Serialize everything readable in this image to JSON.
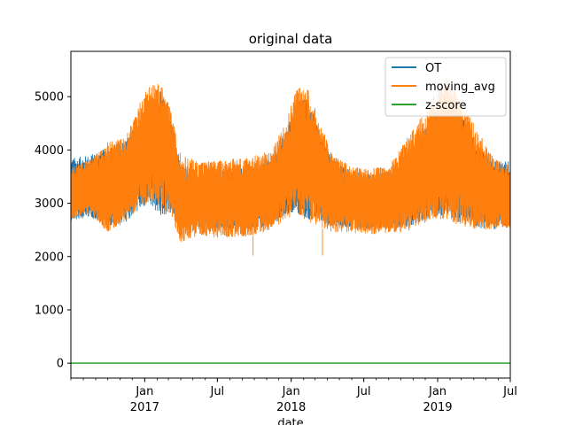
{
  "chart_data": {
    "type": "line",
    "title": "original data",
    "xlabel": "date",
    "ylabel": "",
    "x_range": [
      "2016-07-01",
      "2019-07-01"
    ],
    "ylim": [
      -280,
      5850
    ],
    "y_ticks": [
      0,
      1000,
      2000,
      3000,
      4000,
      5000
    ],
    "x_ticks": [
      {
        "date": "2017-01-01",
        "label": "Jan",
        "sub": "2017"
      },
      {
        "date": "2017-07-01",
        "label": "Jul",
        "sub": ""
      },
      {
        "date": "2018-01-01",
        "label": "Jan",
        "sub": "2018"
      },
      {
        "date": "2018-07-01",
        "label": "Jul",
        "sub": ""
      },
      {
        "date": "2019-01-01",
        "label": "Jan",
        "sub": "2019"
      },
      {
        "date": "2019-07-01",
        "label": "Jul",
        "sub": ""
      }
    ],
    "legend_position": "top-right",
    "grid": false,
    "series": [
      {
        "name": "OT",
        "color": "#1f77b4",
        "envelope": [
          {
            "x": "2016-07-01",
            "low": 2650,
            "high": 3850
          },
          {
            "x": "2016-08-15",
            "low": 2750,
            "high": 3900
          },
          {
            "x": "2016-10-01",
            "low": 2550,
            "high": 4050
          },
          {
            "x": "2016-11-15",
            "low": 2650,
            "high": 4200
          },
          {
            "x": "2016-12-15",
            "low": 2850,
            "high": 4500
          },
          {
            "x": "2017-01-10",
            "low": 2950,
            "high": 4900
          },
          {
            "x": "2017-02-10",
            "low": 2750,
            "high": 5100
          },
          {
            "x": "2017-03-05",
            "low": 2800,
            "high": 4700
          },
          {
            "x": "2017-04-01",
            "low": 2600,
            "high": 3700
          },
          {
            "x": "2017-05-15",
            "low": 2550,
            "high": 3600
          },
          {
            "x": "2017-07-01",
            "low": 2500,
            "high": 3650
          },
          {
            "x": "2017-08-15",
            "low": 2500,
            "high": 3650
          },
          {
            "x": "2017-10-01",
            "low": 2500,
            "high": 3700
          },
          {
            "x": "2017-11-15",
            "low": 2600,
            "high": 3900
          },
          {
            "x": "2017-12-20",
            "low": 2800,
            "high": 4400
          },
          {
            "x": "2018-01-15",
            "low": 2800,
            "high": 4900
          },
          {
            "x": "2018-02-10",
            "low": 2700,
            "high": 5000
          },
          {
            "x": "2018-03-10",
            "low": 2650,
            "high": 4400
          },
          {
            "x": "2018-04-15",
            "low": 2550,
            "high": 3800
          },
          {
            "x": "2018-06-01",
            "low": 2550,
            "high": 3600
          },
          {
            "x": "2018-07-15",
            "low": 2500,
            "high": 3550
          },
          {
            "x": "2018-09-01",
            "low": 2550,
            "high": 3600
          },
          {
            "x": "2018-10-15",
            "low": 2550,
            "high": 3900
          },
          {
            "x": "2018-11-20",
            "low": 2650,
            "high": 4300
          },
          {
            "x": "2018-12-20",
            "low": 2750,
            "high": 4700
          },
          {
            "x": "2019-01-20",
            "low": 2750,
            "high": 5000
          },
          {
            "x": "2019-02-20",
            "low": 2650,
            "high": 4800
          },
          {
            "x": "2019-04-01",
            "low": 2550,
            "high": 4200
          },
          {
            "x": "2019-05-15",
            "low": 2500,
            "high": 3800
          },
          {
            "x": "2019-07-01",
            "low": 2550,
            "high": 3800
          }
        ]
      },
      {
        "name": "moving_avg",
        "color": "#ff7f0e",
        "envelope": [
          {
            "x": "2016-07-01",
            "low": 2700,
            "high": 3700
          },
          {
            "x": "2016-08-15",
            "low": 2800,
            "high": 3800
          },
          {
            "x": "2016-10-01",
            "low": 2450,
            "high": 4150
          },
          {
            "x": "2016-11-15",
            "low": 2650,
            "high": 4250
          },
          {
            "x": "2016-12-15",
            "low": 2900,
            "high": 4800
          },
          {
            "x": "2017-01-10",
            "low": 3000,
            "high": 5250
          },
          {
            "x": "2017-02-10",
            "low": 2900,
            "high": 5250
          },
          {
            "x": "2017-03-05",
            "low": 2800,
            "high": 4800
          },
          {
            "x": "2017-04-01",
            "low": 2250,
            "high": 3900
          },
          {
            "x": "2017-05-15",
            "low": 2400,
            "high": 3800
          },
          {
            "x": "2017-07-01",
            "low": 2350,
            "high": 3800
          },
          {
            "x": "2017-08-15",
            "low": 2350,
            "high": 3850
          },
          {
            "x": "2017-10-01",
            "low": 2400,
            "high": 3900
          },
          {
            "x": "2017-11-15",
            "low": 2500,
            "high": 4000
          },
          {
            "x": "2017-12-20",
            "low": 2700,
            "high": 4600
          },
          {
            "x": "2018-01-15",
            "low": 2800,
            "high": 5200
          },
          {
            "x": "2018-02-10",
            "low": 2650,
            "high": 5200
          },
          {
            "x": "2018-03-10",
            "low": 2550,
            "high": 4600
          },
          {
            "x": "2018-04-15",
            "low": 2450,
            "high": 3900
          },
          {
            "x": "2018-06-01",
            "low": 2450,
            "high": 3700
          },
          {
            "x": "2018-07-15",
            "low": 2400,
            "high": 3650
          },
          {
            "x": "2018-09-01",
            "low": 2450,
            "high": 3700
          },
          {
            "x": "2018-10-15",
            "low": 2450,
            "high": 4200
          },
          {
            "x": "2018-11-20",
            "low": 2600,
            "high": 4600
          },
          {
            "x": "2018-12-20",
            "low": 2700,
            "high": 5000
          },
          {
            "x": "2019-01-20",
            "low": 2700,
            "high": 5400
          },
          {
            "x": "2019-02-20",
            "low": 2600,
            "high": 5000
          },
          {
            "x": "2019-04-01",
            "low": 2500,
            "high": 4500
          },
          {
            "x": "2019-05-15",
            "low": 2500,
            "high": 3900
          },
          {
            "x": "2019-07-01",
            "low": 2550,
            "high": 3700
          }
        ],
        "outliers": [
          {
            "x": "2017-09-28",
            "y": 2020
          },
          {
            "x": "2018-03-20",
            "y": 2020
          }
        ]
      },
      {
        "name": "z-score",
        "color": "#2ca02c",
        "constant_value": 0
      }
    ]
  }
}
